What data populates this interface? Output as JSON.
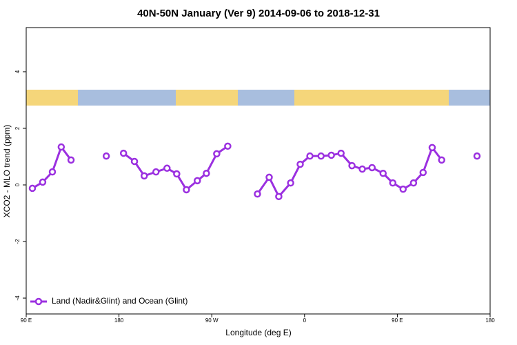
{
  "chart_data": {
    "type": "line",
    "title": "40N-50N January (Ver 9)   2014-09-06 to 2018-12-31",
    "x_label": "Longitude (deg E)",
    "y_label": "XCO2 - MLO trend (ppm)",
    "xlim": [
      90,
      540
    ],
    "ylim": [
      -4.56,
      5.56
    ],
    "xticks": [
      {
        "value": 90,
        "label": "90 E"
      },
      {
        "value": 180,
        "label": "180"
      },
      {
        "value": 270,
        "label": "90 W"
      },
      {
        "value": 360,
        "label": "0"
      },
      {
        "value": 450,
        "label": "90 E"
      },
      {
        "value": 540,
        "label": "180"
      }
    ],
    "yticks": [
      -4,
      -2,
      0,
      2,
      4
    ],
    "legend": "bottom-left",
    "x": [
      96,
      106,
      115.4,
      124,
      133.5,
      150,
      167.7,
      176,
      184.4,
      195,
      204.5,
      215.9,
      226.6,
      236,
      245.4,
      256,
      264.8,
      274.8,
      285.5,
      300,
      314.3,
      325.7,
      335,
      346.5,
      355.8,
      365.2,
      376,
      386,
      395.4,
      406,
      416,
      425.5,
      436.2,
      445.6,
      455.6,
      465.7,
      475,
      483.8,
      493,
      510,
      527.3
    ],
    "series": [
      {
        "name": "Land (Nadir&Glint) and Ocean (Glint)",
        "color": "#9b30e0",
        "values": [
          -0.12,
          0.1,
          0.46,
          1.34,
          0.88,
          null,
          1.02,
          null,
          1.12,
          0.83,
          0.32,
          0.46,
          0.59,
          0.39,
          -0.17,
          0.15,
          0.41,
          1.1,
          1.37,
          null,
          -0.32,
          0.27,
          -0.41,
          0.07,
          0.73,
          1.02,
          1.02,
          1.05,
          1.12,
          0.68,
          0.56,
          0.61,
          0.41,
          0.07,
          -0.15,
          0.07,
          0.44,
          1.32,
          0.88,
          null,
          1.02
        ]
      }
    ]
  }
}
